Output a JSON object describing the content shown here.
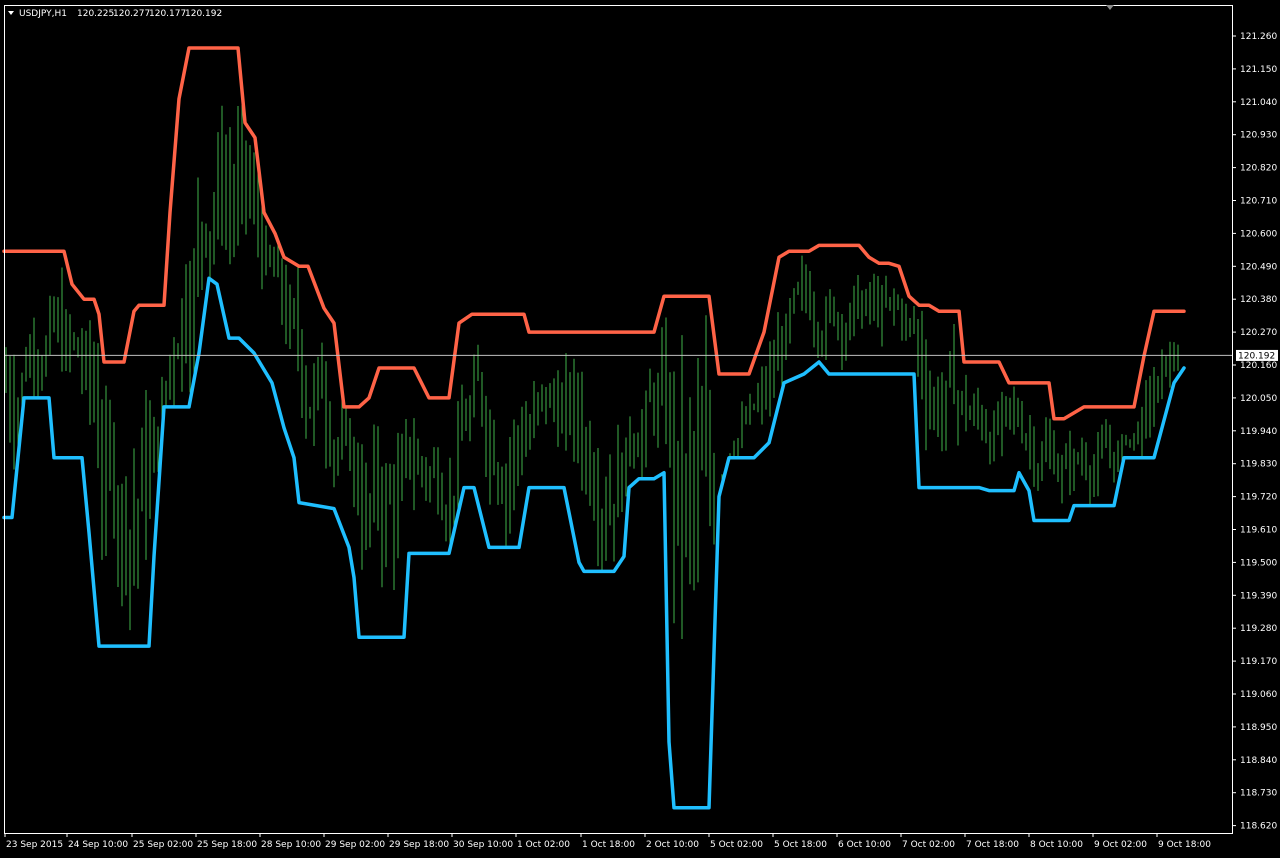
{
  "header": {
    "menu_icon": "triangle-down-icon",
    "symbol": "USDJPY,H1",
    "open": "120.225",
    "high": "120.277",
    "low": "120.177",
    "close": "120.192"
  },
  "colors": {
    "background": "#000000",
    "frame": "#ffffff",
    "candles": "#3fb24a",
    "upper_band": "#ff6347",
    "lower_band": "#1fbfff",
    "price_line": "#c0c0c0",
    "price_label_bg": "#ffffff",
    "price_label_text": "#000000"
  },
  "chart_data": {
    "type": "line",
    "symbol": "USDJPY",
    "timeframe": "H1",
    "y_ticks": [
      "121.260",
      "121.150",
      "121.040",
      "120.930",
      "120.820",
      "120.710",
      "120.600",
      "120.490",
      "120.380",
      "120.270",
      "120.160",
      "120.050",
      "119.940",
      "119.830",
      "119.720",
      "119.610",
      "119.500",
      "119.390",
      "119.280",
      "119.170",
      "119.060",
      "118.950",
      "118.840",
      "118.730",
      "118.620"
    ],
    "ylim": [
      118.6,
      121.3
    ],
    "current_price": "120.192",
    "x_ticks": [
      "23 Sep 2015",
      "24 Sep 10:00",
      "25 Sep 02:00",
      "25 Sep 18:00",
      "28 Sep 10:00",
      "29 Sep 02:00",
      "29 Sep 18:00",
      "30 Sep 10:00",
      "1 Oct 02:00",
      "1 Oct 18:00",
      "2 Oct 10:00",
      "5 Oct 02:00",
      "5 Oct 18:00",
      "6 Oct 10:00",
      "7 Oct 02:00",
      "7 Oct 18:00",
      "8 Oct 10:00",
      "9 Oct 02:00",
      "9 Oct 18:00"
    ],
    "series": [
      {
        "role": "upper-band",
        "color": "#ff6347",
        "x": [
          0,
          30,
          32,
          40,
          60,
          68,
          80,
          90,
          95,
          100,
          110,
          120,
          130,
          135,
          140,
          150,
          160,
          166,
          175,
          185,
          195,
          210,
          220,
          234,
          241,
          251,
          260,
          271,
          280,
          295,
          304,
          320,
          330,
          340,
          350,
          355,
          365,
          375,
          395,
          410,
          425,
          435,
          445,
          455,
          468,
          490,
          510,
          520,
          525,
          535,
          550,
          580,
          595,
          610,
          625,
          640,
          650,
          660,
          665,
          675,
          695,
          705,
          715,
          730,
          745,
          760,
          775,
          785,
          795,
          805,
          815,
          825,
          830,
          845,
          855,
          865,
          875,
          885,
          895,
          905,
          915,
          925,
          935,
          945,
          955,
          960,
          970,
          985,
          995,
          1005,
          1015,
          1025,
          1030,
          1035,
          1045,
          1050,
          1060,
          1080,
          1100,
          1120,
          1130,
          1140,
          1150,
          1160,
          1170,
          1180
        ],
        "y": [
          120.54,
          120.54,
          120.54,
          120.54,
          120.54,
          120.43,
          120.38,
          120.38,
          120.33,
          120.17,
          120.17,
          120.17,
          120.34,
          120.36,
          120.36,
          120.36,
          120.36,
          120.67,
          121.05,
          121.22,
          121.22,
          121.22,
          121.22,
          121.22,
          120.97,
          120.92,
          120.67,
          120.6,
          120.52,
          120.49,
          120.49,
          120.35,
          120.3,
          120.02,
          120.02,
          120.02,
          120.05,
          120.15,
          120.15,
          120.15,
          120.05,
          120.05,
          120.05,
          120.3,
          120.33,
          120.33,
          120.33,
          120.33,
          120.27,
          120.27,
          120.27,
          120.27,
          120.27,
          120.27,
          120.27,
          120.27,
          120.27,
          120.39,
          120.39,
          120.39,
          120.39,
          120.39,
          120.13,
          120.13,
          120.13,
          120.27,
          120.52,
          120.54,
          120.54,
          120.54,
          120.56,
          120.56,
          120.56,
          120.56,
          120.56,
          120.52,
          120.5,
          120.5,
          120.49,
          120.39,
          120.36,
          120.36,
          120.34,
          120.34,
          120.34,
          120.17,
          120.17,
          120.17,
          120.17,
          120.1,
          120.1,
          120.1,
          120.1,
          120.1,
          120.1,
          119.98,
          119.98,
          120.02,
          120.02,
          120.02,
          120.02,
          120.19,
          120.34,
          120.34,
          120.34,
          120.34
        ],
        "pattern": "stepped-trailing"
      },
      {
        "role": "lower-band",
        "color": "#1fbfff",
        "x": [
          0,
          8,
          20,
          45,
          50,
          78,
          85,
          95,
          105,
          120,
          145,
          150,
          160,
          165,
          170,
          185,
          195,
          205,
          213,
          225,
          235,
          250,
          268,
          280,
          290,
          295,
          330,
          345,
          350,
          355,
          400,
          405,
          430,
          445,
          460,
          470,
          485,
          490,
          515,
          525,
          530,
          540,
          560,
          575,
          580,
          610,
          620,
          625,
          635,
          650,
          660,
          665,
          670,
          680,
          690,
          695,
          705,
          715,
          725,
          740,
          750,
          765,
          780,
          800,
          815,
          825,
          835,
          850,
          870,
          895,
          910,
          915,
          930,
          950,
          960,
          975,
          985,
          1000,
          1010,
          1015,
          1025,
          1030,
          1040,
          1055,
          1065,
          1070,
          1080,
          1090,
          1110,
          1120,
          1130,
          1150,
          1170,
          1180
        ],
        "y": [
          119.65,
          119.65,
          120.05,
          120.05,
          119.85,
          119.85,
          119.6,
          119.22,
          119.22,
          119.22,
          119.22,
          119.52,
          120.02,
          120.02,
          120.02,
          120.02,
          120.2,
          120.45,
          120.43,
          120.25,
          120.25,
          120.2,
          120.1,
          119.95,
          119.85,
          119.7,
          119.68,
          119.55,
          119.45,
          119.25,
          119.25,
          119.53,
          119.53,
          119.53,
          119.75,
          119.75,
          119.55,
          119.55,
          119.55,
          119.75,
          119.75,
          119.75,
          119.75,
          119.5,
          119.47,
          119.47,
          119.52,
          119.75,
          119.78,
          119.78,
          119.8,
          118.9,
          118.68,
          118.68,
          118.68,
          118.68,
          118.68,
          119.72,
          119.85,
          119.85,
          119.85,
          119.9,
          120.1,
          120.13,
          120.17,
          120.13,
          120.13,
          120.13,
          120.13,
          120.13,
          120.13,
          119.75,
          119.75,
          119.75,
          119.75,
          119.75,
          119.74,
          119.74,
          119.74,
          119.8,
          119.74,
          119.64,
          119.64,
          119.64,
          119.64,
          119.69,
          119.69,
          119.69,
          119.69,
          119.85,
          119.85,
          119.85,
          120.1,
          120.15
        ],
        "pattern": "stepped-trailing"
      }
    ],
    "candles_note": "hourly bars between the bands"
  }
}
